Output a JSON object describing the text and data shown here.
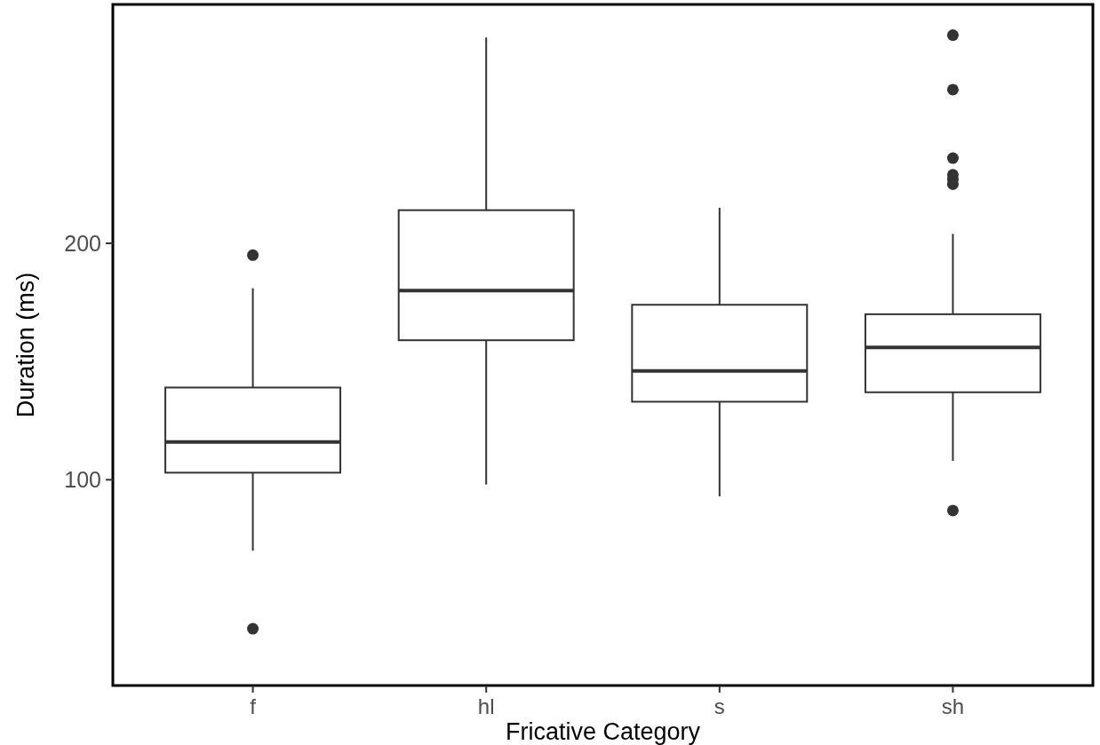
{
  "chart_data": {
    "type": "box",
    "xlabel": "Fricative Category",
    "ylabel": "Duration (ms)",
    "categories": [
      "f",
      "hl",
      "s",
      "sh"
    ],
    "ylim": [
      13,
      301
    ],
    "yticks": [
      100,
      200
    ],
    "grid": false,
    "boxes": [
      {
        "low": 70,
        "q1": 103,
        "median": 116,
        "q3": 139,
        "high": 181,
        "outliers": [
          195,
          37
        ]
      },
      {
        "low": 98,
        "q1": 159,
        "median": 180,
        "q3": 214,
        "high": 287
      },
      {
        "low": 93,
        "q1": 133,
        "median": 146,
        "q3": 174,
        "high": 215
      },
      {
        "low": 108,
        "q1": 137,
        "median": 156,
        "q3": 170,
        "high": 204,
        "outliers": [
          288,
          265,
          236,
          229,
          227,
          225,
          87
        ]
      }
    ]
  }
}
